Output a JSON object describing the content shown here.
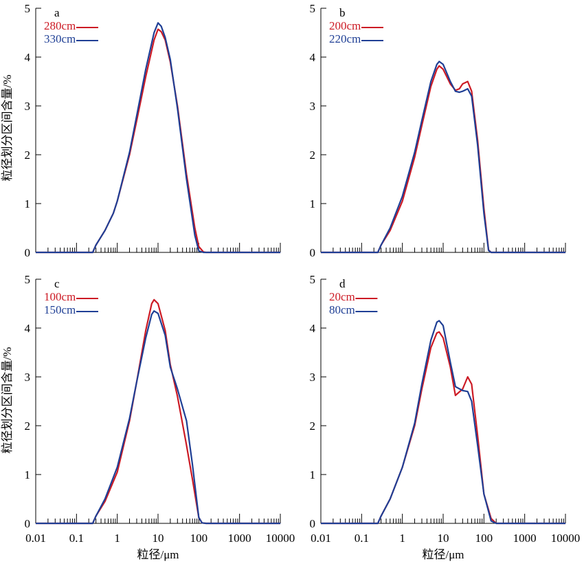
{
  "x_axis_label": "粒径/μm",
  "y_axis_label": "粒径划分区间含量/%",
  "x_ticks": [
    "0.01",
    "0.1",
    "1",
    "10",
    "100",
    "1000",
    "10000"
  ],
  "y_ticks": [
    "0",
    "1",
    "2",
    "3",
    "4",
    "5"
  ],
  "colors": {
    "red": "#cc1a24",
    "blue": "#1f3f95"
  },
  "chart_data": [
    {
      "type": "line",
      "panel_label": "a",
      "x_scale": "log",
      "xlim": [
        0.01,
        10000
      ],
      "ylim": [
        0,
        5
      ],
      "xlabel": "",
      "ylabel": "粒径划分区间含量/%",
      "legend_position": "top-left",
      "series": [
        {
          "name": "280cm",
          "color": "#cc1a24",
          "x": [
            0.01,
            0.1,
            0.25,
            0.3,
            0.5,
            0.8,
            1,
            2,
            3,
            5,
            8,
            10,
            12,
            15,
            20,
            30,
            50,
            80,
            100,
            130,
            150,
            1000,
            10000
          ],
          "y": [
            0,
            0,
            0,
            0.15,
            0.45,
            0.8,
            1.05,
            2.0,
            2.7,
            3.6,
            4.35,
            4.57,
            4.52,
            4.35,
            3.9,
            3.0,
            1.6,
            0.5,
            0.12,
            0.01,
            0,
            0,
            0
          ]
        },
        {
          "name": "330cm",
          "color": "#1f3f95",
          "x": [
            0.01,
            0.1,
            0.25,
            0.3,
            0.5,
            0.8,
            1,
            2,
            3,
            5,
            8,
            10,
            12,
            15,
            20,
            30,
            50,
            80,
            100,
            130,
            150,
            1000,
            10000
          ],
          "y": [
            0,
            0,
            0,
            0.15,
            0.45,
            0.8,
            1.05,
            2.05,
            2.8,
            3.75,
            4.5,
            4.7,
            4.63,
            4.4,
            3.95,
            2.95,
            1.5,
            0.35,
            0.03,
            0,
            0,
            0,
            0
          ]
        }
      ]
    },
    {
      "type": "line",
      "panel_label": "b",
      "x_scale": "log",
      "xlim": [
        0.01,
        10000
      ],
      "ylim": [
        0,
        5
      ],
      "xlabel": "",
      "ylabel": "",
      "legend_position": "top-left",
      "series": [
        {
          "name": "200cm",
          "color": "#cc1a24",
          "x": [
            0.01,
            0.1,
            0.25,
            0.3,
            0.5,
            1,
            2,
            3,
            5,
            7,
            8,
            10,
            15,
            20,
            25,
            30,
            40,
            50,
            70,
            100,
            130,
            150,
            1000,
            10000
          ],
          "y": [
            0,
            0,
            0,
            0.15,
            0.45,
            1.05,
            1.95,
            2.6,
            3.4,
            3.75,
            3.82,
            3.75,
            3.45,
            3.32,
            3.35,
            3.45,
            3.5,
            3.3,
            2.3,
            0.9,
            0.05,
            0,
            0,
            0
          ]
        },
        {
          "name": "220cm",
          "color": "#1f3f95",
          "x": [
            0.01,
            0.1,
            0.25,
            0.3,
            0.5,
            1,
            2,
            3,
            5,
            7,
            8,
            10,
            15,
            20,
            25,
            30,
            40,
            50,
            70,
            100,
            130,
            150,
            1000,
            10000
          ],
          "y": [
            0,
            0,
            0,
            0.15,
            0.5,
            1.15,
            2.05,
            2.7,
            3.5,
            3.85,
            3.91,
            3.85,
            3.5,
            3.3,
            3.28,
            3.3,
            3.35,
            3.2,
            2.2,
            0.8,
            0.04,
            0,
            0,
            0
          ]
        }
      ]
    },
    {
      "type": "line",
      "panel_label": "c",
      "x_scale": "log",
      "xlim": [
        0.01,
        10000
      ],
      "ylim": [
        0,
        5
      ],
      "xlabel": "粒径/μm",
      "ylabel": "粒径划分区间含量/%",
      "legend_position": "top-left",
      "series": [
        {
          "name": "100cm",
          "color": "#cc1a24",
          "x": [
            0.01,
            0.1,
            0.25,
            0.3,
            0.5,
            1,
            2,
            3,
            5,
            7,
            8,
            10,
            15,
            20,
            30,
            50,
            70,
            100,
            120,
            150,
            1000,
            10000
          ],
          "y": [
            0,
            0,
            0,
            0.15,
            0.45,
            1.05,
            2.1,
            2.9,
            3.95,
            4.5,
            4.58,
            4.5,
            3.95,
            3.25,
            2.6,
            1.6,
            0.9,
            0.12,
            0.01,
            0,
            0,
            0
          ]
        },
        {
          "name": "150cm",
          "color": "#1f3f95",
          "x": [
            0.01,
            0.1,
            0.25,
            0.3,
            0.5,
            1,
            2,
            3,
            5,
            7,
            8,
            10,
            15,
            20,
            30,
            50,
            70,
            100,
            120,
            150,
            1000,
            10000
          ],
          "y": [
            0,
            0,
            0,
            0.15,
            0.5,
            1.15,
            2.15,
            2.9,
            3.8,
            4.28,
            4.35,
            4.3,
            3.85,
            3.2,
            2.75,
            2.1,
            1.2,
            0.12,
            0.01,
            0,
            0,
            0
          ]
        }
      ]
    },
    {
      "type": "line",
      "panel_label": "d",
      "x_scale": "log",
      "xlim": [
        0.01,
        10000
      ],
      "ylim": [
        0,
        5
      ],
      "xlabel": "粒径/μm",
      "ylabel": "",
      "legend_position": "top-left",
      "series": [
        {
          "name": "20cm",
          "color": "#cc1a24",
          "x": [
            0.01,
            0.1,
            0.25,
            0.3,
            0.5,
            1,
            2,
            3,
            5,
            7,
            8,
            10,
            15,
            20,
            30,
            40,
            50,
            70,
            100,
            150,
            200,
            1000,
            10000
          ],
          "y": [
            0,
            0,
            0,
            0.15,
            0.5,
            1.15,
            2.0,
            2.75,
            3.6,
            3.9,
            3.92,
            3.8,
            3.2,
            2.62,
            2.75,
            3.0,
            2.85,
            1.8,
            0.6,
            0.1,
            0,
            0,
            0
          ]
        },
        {
          "name": "80cm",
          "color": "#1f3f95",
          "x": [
            0.01,
            0.1,
            0.25,
            0.3,
            0.5,
            1,
            2,
            3,
            5,
            7,
            8,
            10,
            15,
            20,
            30,
            40,
            50,
            70,
            100,
            150,
            200,
            1000,
            10000
          ],
          "y": [
            0,
            0,
            0,
            0.15,
            0.5,
            1.15,
            2.05,
            2.85,
            3.75,
            4.12,
            4.15,
            4.05,
            3.3,
            2.8,
            2.72,
            2.7,
            2.5,
            1.6,
            0.6,
            0.05,
            0,
            0,
            0
          ]
        }
      ]
    }
  ]
}
